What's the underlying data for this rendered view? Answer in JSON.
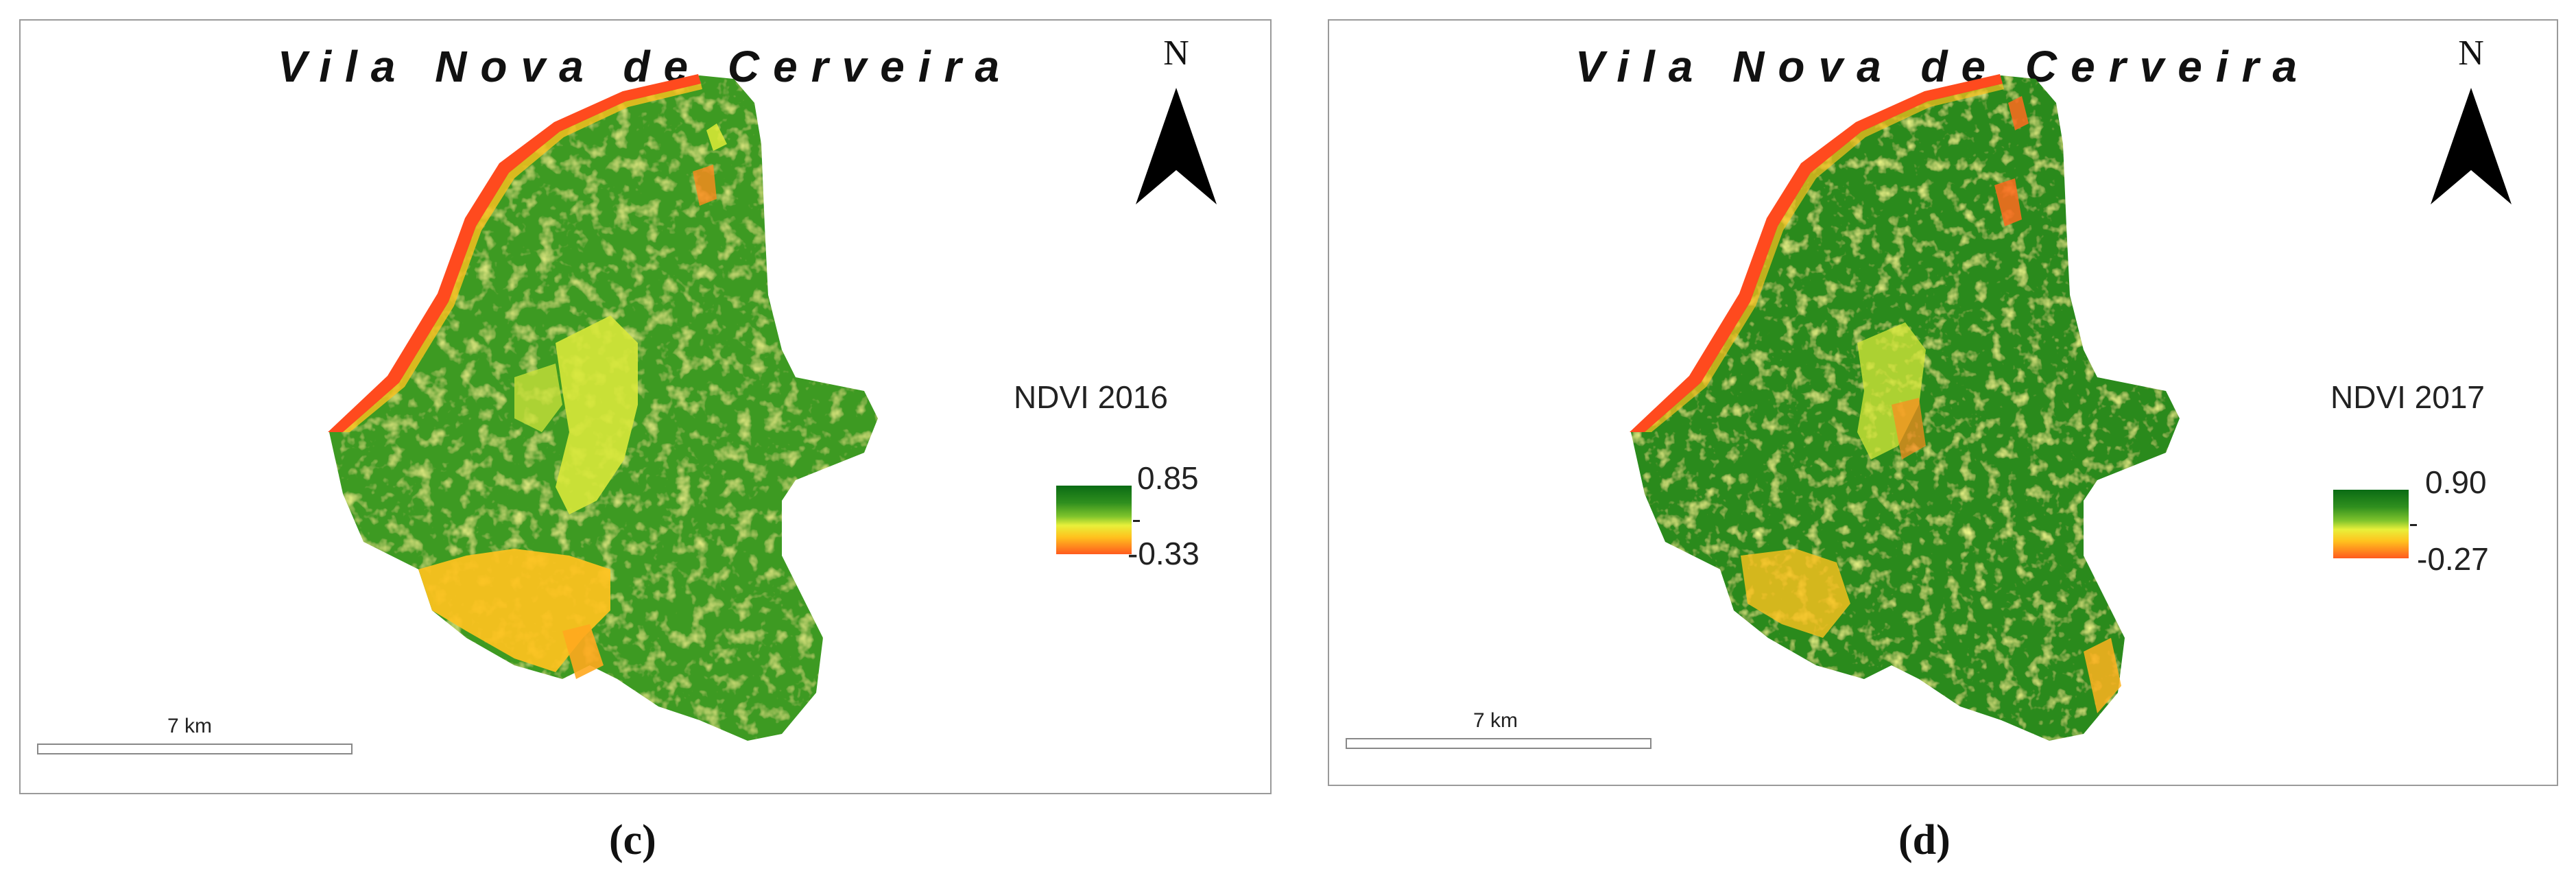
{
  "panels": [
    {
      "title": "Vila Nova de Cerveira",
      "north_label": "N",
      "legend": {
        "title": "NDVI 2016",
        "max": "0.85",
        "min": "-0.33"
      },
      "scale_label": "7 km",
      "caption": "(c)"
    },
    {
      "title": "Vila Nova de Cerveira",
      "north_label": "N",
      "legend": {
        "title": "NDVI 2017",
        "max": "0.90",
        "min": "-0.27"
      },
      "scale_label": "7 km",
      "caption": "(d)"
    }
  ],
  "colors": {
    "dense_vegetation": "#0a6b14",
    "vegetation": "#3d9a22",
    "sparse_vegetation": "#d8e83a",
    "low_vegetation": "#ffbe1e",
    "water_bare": "#ff4a1e"
  }
}
